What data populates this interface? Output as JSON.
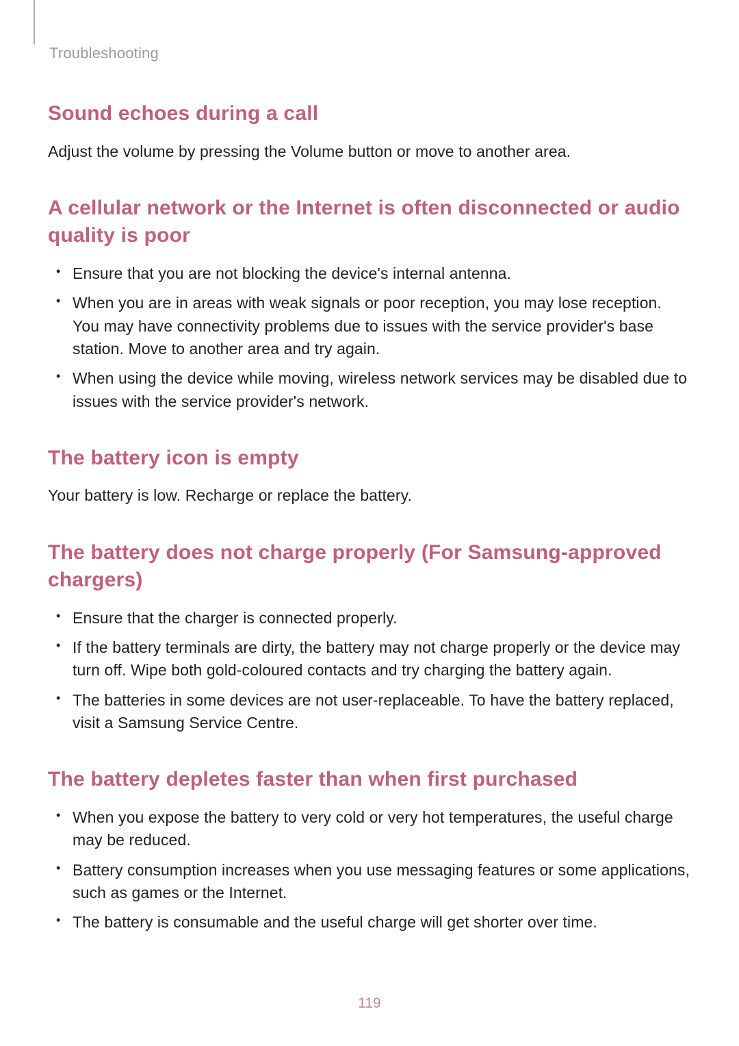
{
  "header": {
    "breadcrumb": "Troubleshooting"
  },
  "colors": {
    "heading": "#c0607a",
    "body_text": "#222222",
    "header_text": "#9a9a9a",
    "page_number": "#b88a95",
    "background": "#ffffff",
    "divider": "#b0b0b0"
  },
  "typography": {
    "heading_fontsize": 30,
    "body_fontsize": 23,
    "header_fontsize": 22,
    "page_number_fontsize": 21,
    "font_family": "Arial, Helvetica, sans-serif"
  },
  "sections": [
    {
      "heading": "Sound echoes during a call",
      "body": "Adjust the volume by pressing the Volume button or move to another area.",
      "bullets": []
    },
    {
      "heading": "A cellular network or the Internet is often disconnected or audio quality is poor",
      "body": "",
      "bullets": [
        "Ensure that you are not blocking the device's internal antenna.",
        "When you are in areas with weak signals or poor reception, you may lose reception. You may have connectivity problems due to issues with the service provider's base station. Move to another area and try again.",
        "When using the device while moving, wireless network services may be disabled due to issues with the service provider's network."
      ]
    },
    {
      "heading": "The battery icon is empty",
      "body": "Your battery is low. Recharge or replace the battery.",
      "bullets": []
    },
    {
      "heading": "The battery does not charge properly (For Samsung-approved chargers)",
      "body": "",
      "bullets": [
        "Ensure that the charger is connected properly.",
        "If the battery terminals are dirty, the battery may not charge properly or the device may turn off. Wipe both gold-coloured contacts and try charging the battery again.",
        "The batteries in some devices are not user-replaceable. To have the battery replaced, visit a Samsung Service Centre."
      ]
    },
    {
      "heading": "The battery depletes faster than when first purchased",
      "body": "",
      "bullets": [
        "When you expose the battery to very cold or very hot temperatures, the useful charge may be reduced.",
        "Battery consumption increases when you use messaging features or some applications, such as games or the Internet.",
        "The battery is consumable and the useful charge will get shorter over time."
      ]
    }
  ],
  "page_number": "119"
}
